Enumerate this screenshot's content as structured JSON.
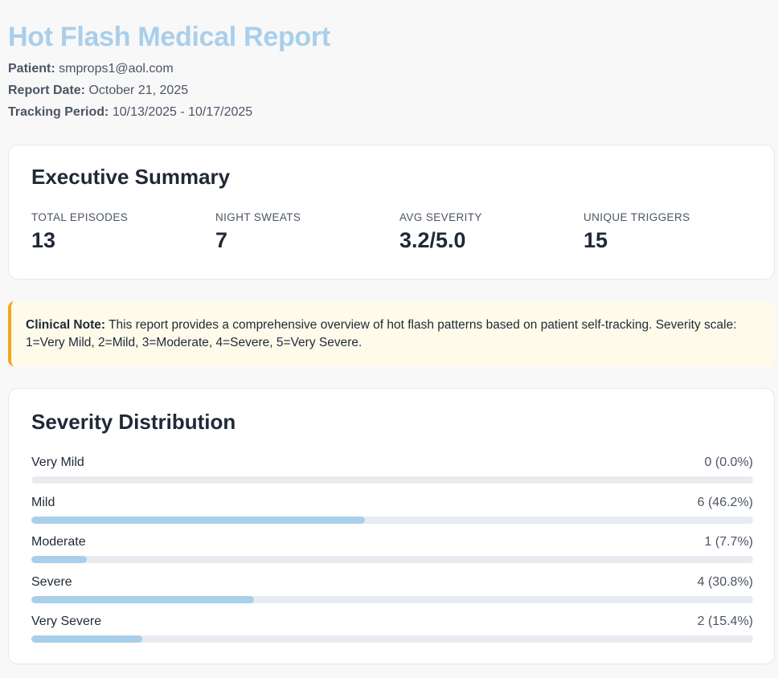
{
  "report": {
    "title": "Hot Flash Medical Report",
    "patient_label": "Patient:",
    "patient": "smprops1@aol.com",
    "date_label": "Report Date:",
    "date": "October 21, 2025",
    "period_label": "Tracking Period:",
    "period": "10/13/2025 - 10/17/2025"
  },
  "summary": {
    "title": "Executive Summary",
    "stats": [
      {
        "label": "Total Episodes",
        "value": "13"
      },
      {
        "label": "Night Sweats",
        "value": "7"
      },
      {
        "label": "Avg Severity",
        "value": "3.2/5.0"
      },
      {
        "label": "Unique Triggers",
        "value": "15"
      }
    ]
  },
  "note": {
    "label": "Clinical Note:",
    "text": "This report provides a comprehensive overview of hot flash patterns based on patient self-tracking. Severity scale: 1=Very Mild, 2=Mild, 3=Moderate, 4=Severe, 5=Very Severe."
  },
  "distribution": {
    "title": "Severity Distribution",
    "rows": [
      {
        "name": "Very Mild",
        "count_text": "0 (0.0%)",
        "percent": 0.0
      },
      {
        "name": "Mild",
        "count_text": "6 (46.2%)",
        "percent": 46.2
      },
      {
        "name": "Moderate",
        "count_text": "1 (7.7%)",
        "percent": 7.7
      },
      {
        "name": "Severe",
        "count_text": "4 (30.8%)",
        "percent": 30.8
      },
      {
        "name": "Very Severe",
        "count_text": "2 (15.4%)",
        "percent": 15.4
      }
    ]
  },
  "colors": {
    "title": "#a9cfea",
    "bar_fill": "#a9cfea",
    "bar_track": "#e8ebef",
    "note_accent": "#f0a818",
    "note_background": "#fefbea"
  }
}
